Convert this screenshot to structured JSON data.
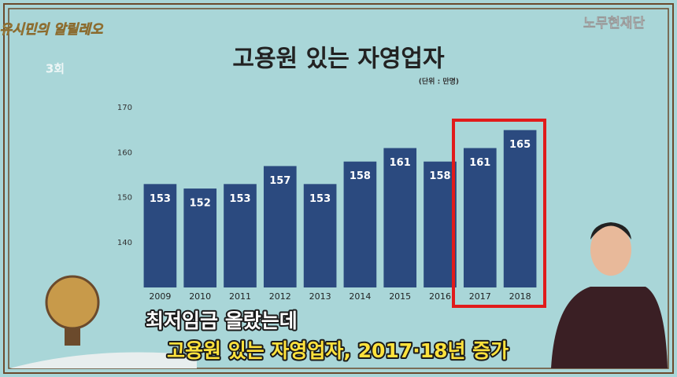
{
  "episode": "3회",
  "logo": {
    "top_left": "유시민의 알릴레오",
    "top_right": "노무현재단"
  },
  "captions": [
    "최저임금 올랐는데",
    "고용원 있는 자영업자, 2017·18년 증가"
  ],
  "chart_data": {
    "type": "bar",
    "title": "고용원 있는 자영업자",
    "unit": "(단위 : 만명)",
    "categories": [
      "2009",
      "2010",
      "2011",
      "2012",
      "2013",
      "2014",
      "2015",
      "2016",
      "2017",
      "2018"
    ],
    "values": [
      153,
      152,
      153,
      157,
      153,
      158,
      161,
      158,
      161,
      165
    ],
    "color": "#2b4a7f",
    "ylim": [
      130,
      170
    ],
    "yticks": [
      140,
      150,
      160,
      170
    ],
    "grid": false
  }
}
